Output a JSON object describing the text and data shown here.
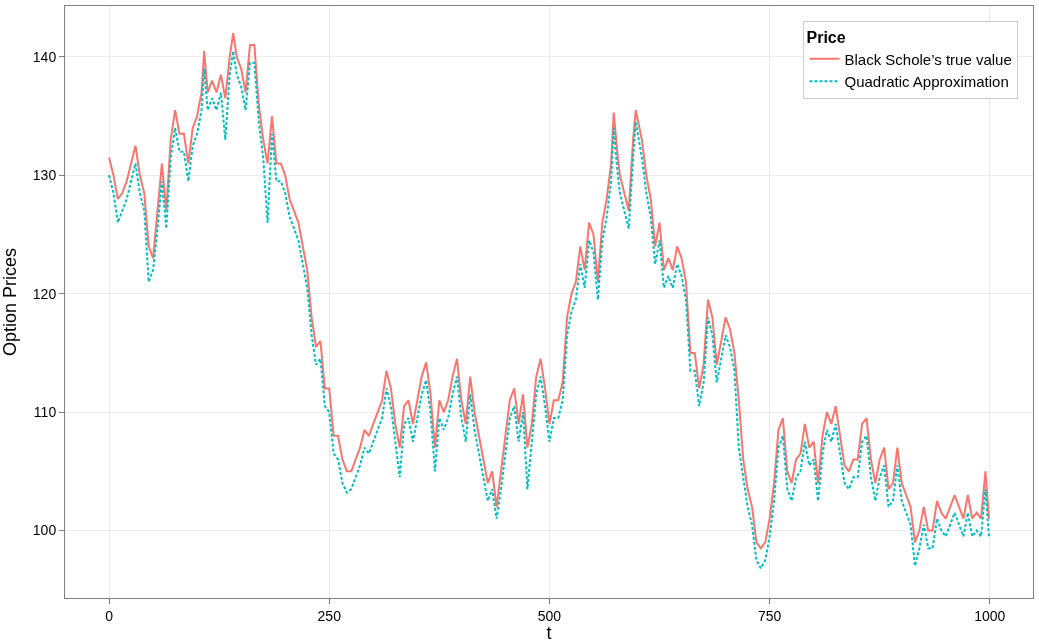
{
  "chart_data": {
    "type": "line",
    "xlabel": "t",
    "ylabel": "Option Prices",
    "legend_title": "Price",
    "legend": "top right",
    "grid": true,
    "marker": "none",
    "x": [
      0,
      5,
      10,
      15,
      20,
      25,
      30,
      35,
      40,
      45,
      50,
      55,
      60,
      65,
      70,
      75,
      80,
      85,
      90,
      95,
      100,
      105,
      108,
      112,
      117,
      122,
      127,
      132,
      137,
      141,
      145,
      150,
      155,
      160,
      165,
      170,
      175,
      180,
      185,
      190,
      195,
      200,
      205,
      210,
      215,
      220,
      225,
      230,
      235,
      240,
      245,
      250,
      255,
      260,
      265,
      270,
      275,
      280,
      285,
      290,
      295,
      300,
      305,
      310,
      315,
      320,
      325,
      330,
      335,
      340,
      345,
      350,
      355,
      360,
      365,
      370,
      375,
      380,
      385,
      390,
      395,
      400,
      405,
      410,
      415,
      420,
      425,
      430,
      435,
      440,
      445,
      450,
      455,
      460,
      465,
      470,
      475,
      480,
      485,
      490,
      495,
      500,
      505,
      510,
      515,
      520,
      525,
      530,
      535,
      540,
      545,
      550,
      555,
      560,
      565,
      570,
      573,
      577,
      580,
      585,
      590,
      595,
      598,
      605,
      610,
      615,
      620,
      625,
      630,
      635,
      640,
      645,
      650,
      655,
      660,
      665,
      670,
      675,
      680,
      685,
      690,
      695,
      700,
      705,
      710,
      715,
      720,
      725,
      730,
      735,
      740,
      745,
      750,
      755,
      760,
      765,
      770,
      775,
      780,
      785,
      790,
      795,
      800,
      805,
      810,
      815,
      820,
      825,
      830,
      835,
      840,
      845,
      850,
      855,
      860,
      865,
      870,
      875,
      880,
      885,
      890,
      895,
      900,
      905,
      910,
      915,
      920,
      925,
      930,
      935,
      940,
      945,
      950,
      955,
      960,
      965,
      970,
      975,
      980,
      985,
      990,
      995,
      999
    ],
    "xlim": [
      -50,
      1049
    ],
    "xticks": [
      0,
      250,
      500,
      750,
      1000
    ],
    "ylim": [
      94.3,
      144.3
    ],
    "yticks": [
      100,
      110,
      120,
      130,
      140
    ],
    "series": [
      {
        "name": "Black Schole’s true value",
        "color": "#f8766d",
        "line_style": "solid",
        "values": [
          131.5,
          130,
          128,
          128.5,
          129.5,
          131,
          132.5,
          130,
          128.5,
          124,
          123,
          127,
          131,
          127,
          133,
          135.5,
          133.5,
          133.5,
          131,
          134,
          135,
          137,
          140.5,
          137,
          138,
          137,
          138.5,
          136.5,
          140,
          142,
          140,
          139,
          137,
          141,
          141,
          136,
          133,
          131,
          135,
          131,
          131,
          130,
          128,
          127,
          126,
          124,
          122,
          118,
          115.5,
          116,
          112,
          112,
          108,
          108,
          106,
          105,
          105,
          106,
          107,
          108.5,
          108,
          109,
          110,
          111,
          113.5,
          112,
          109,
          107,
          110.5,
          111,
          109,
          111,
          113,
          114.2,
          111.5,
          107,
          111,
          110,
          111,
          113,
          114.5,
          111,
          109,
          113,
          110,
          108,
          106,
          104,
          105,
          102,
          105,
          108,
          111,
          112,
          109,
          111.5,
          107,
          109,
          113,
          114.5,
          112,
          109,
          111,
          111,
          112.5,
          118,
          120,
          121,
          124,
          122,
          126,
          125,
          121,
          126,
          128,
          131,
          135.3,
          132,
          130,
          128.5,
          127,
          133,
          135.5,
          133,
          130,
          128,
          124,
          126,
          122,
          123,
          122,
          124,
          123,
          121,
          115,
          115,
          112,
          114,
          119.5,
          118,
          114,
          116,
          118,
          117,
          115,
          111,
          106,
          103.5,
          102,
          99,
          98.5,
          99,
          101,
          104,
          108.5,
          109.5,
          105,
          104,
          106,
          106.5,
          109,
          107,
          107.5,
          104,
          108,
          110,
          109,
          110.5,
          108,
          105.5,
          105,
          106,
          106,
          109,
          109.5,
          106,
          104,
          106,
          107,
          103.5,
          104,
          107,
          104,
          103,
          102,
          99,
          100,
          102,
          100,
          100,
          102.5,
          101.5,
          101,
          102,
          103,
          102,
          101,
          103,
          101,
          101.5,
          101,
          105,
          101
        ]
      },
      {
        "name": "Quadratic Approximation",
        "color": "#00bfc4",
        "line_style": "dashed",
        "values": [
          130,
          128.5,
          126,
          127,
          128,
          129.5,
          131,
          128.5,
          127,
          121,
          122,
          125.5,
          129.5,
          125.5,
          131.5,
          134,
          132,
          132,
          129.5,
          132.5,
          133.5,
          135.5,
          139,
          135.5,
          136.5,
          135.5,
          137,
          133,
          138.5,
          140.5,
          138.5,
          137.5,
          135.5,
          139.5,
          139.5,
          134.5,
          131.5,
          126,
          133.5,
          129.5,
          129.5,
          128.5,
          126.5,
          125.5,
          124.5,
          122.5,
          120.5,
          116.5,
          114,
          114.5,
          110.5,
          110,
          106.5,
          106,
          104,
          103.2,
          103.5,
          104.5,
          105.5,
          107,
          106.5,
          107.5,
          108.5,
          109.5,
          112,
          110.5,
          107.5,
          104.5,
          109,
          109.5,
          107.5,
          109.5,
          111.5,
          112.7,
          110,
          105,
          109.5,
          108.5,
          109.5,
          111.5,
          113,
          109.5,
          107.5,
          111.5,
          108.5,
          106.5,
          104.5,
          102.5,
          103.5,
          101,
          103.5,
          106.5,
          109.5,
          110.5,
          107.5,
          110,
          103.5,
          107.5,
          111.5,
          113,
          110.5,
          107.5,
          109.5,
          109.5,
          111,
          116.5,
          118.5,
          119.5,
          122.5,
          120.5,
          124.5,
          123.5,
          119.5,
          124.5,
          126.5,
          129.5,
          134,
          130.5,
          128.5,
          127,
          125.5,
          131.5,
          134.5,
          131.5,
          128.5,
          126.5,
          122.5,
          124.5,
          120.5,
          121.5,
          120.5,
          122.5,
          121.5,
          119.5,
          113.5,
          113.5,
          110.5,
          112.5,
          118,
          116.5,
          112.5,
          114.5,
          116.5,
          115.5,
          113.5,
          107,
          104.5,
          102,
          100.5,
          97.5,
          96.8,
          97.5,
          99.5,
          102.5,
          107,
          108,
          103.5,
          102.5,
          104.5,
          105,
          107.5,
          105.5,
          106,
          102.5,
          106.5,
          108.5,
          107.5,
          109,
          106.5,
          104,
          103.5,
          104.5,
          104.5,
          107.5,
          108,
          104.5,
          102.5,
          104.5,
          105.5,
          102,
          102.5,
          105.5,
          102.5,
          101.5,
          100.5,
          97,
          98.5,
          100.5,
          98.5,
          98.5,
          101,
          100,
          99.5,
          100.5,
          101.5,
          100.5,
          99.5,
          101.5,
          99.5,
          100,
          99.5,
          103.5,
          99.5
        ]
      }
    ]
  }
}
